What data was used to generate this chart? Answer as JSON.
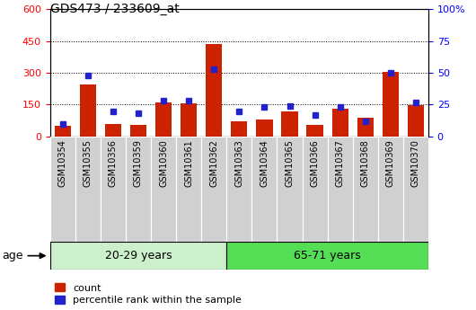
{
  "title": "GDS473 / 233609_at",
  "samples": [
    "GSM10354",
    "GSM10355",
    "GSM10356",
    "GSM10359",
    "GSM10360",
    "GSM10361",
    "GSM10362",
    "GSM10363",
    "GSM10364",
    "GSM10365",
    "GSM10366",
    "GSM10367",
    "GSM10368",
    "GSM10369",
    "GSM10370"
  ],
  "count": [
    50,
    245,
    60,
    55,
    160,
    158,
    435,
    70,
    80,
    120,
    55,
    130,
    90,
    305,
    148
  ],
  "percentile": [
    10,
    48,
    20,
    18,
    28,
    28,
    53,
    20,
    23,
    24,
    17,
    23,
    12,
    50,
    27
  ],
  "group1_label": "20-29 years",
  "group2_label": "65-71 years",
  "group1_count": 7,
  "group2_count": 8,
  "age_label": "age",
  "left_ylim": [
    0,
    600
  ],
  "right_ylim": [
    0,
    100
  ],
  "left_yticks": [
    0,
    150,
    300,
    450,
    600
  ],
  "right_yticks": [
    0,
    25,
    50,
    75,
    100
  ],
  "bar_color": "#cc2200",
  "dot_color": "#2222cc",
  "group1_bg": "#ccf0cc",
  "group2_bg": "#55dd55",
  "tick_bg": "#d0d0d0",
  "legend_count_label": "count",
  "legend_pct_label": "percentile rank within the sample",
  "title_fontsize": 10,
  "tick_label_fontsize": 7,
  "group_label_fontsize": 9
}
